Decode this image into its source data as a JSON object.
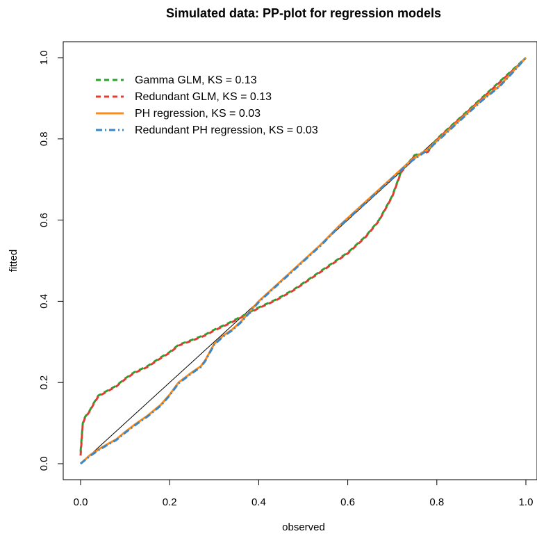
{
  "chart_data": {
    "type": "line",
    "title": "Simulated data: PP-plot for regression models",
    "xlabel": "observed",
    "ylabel": "fitted",
    "xlim": [
      0,
      1
    ],
    "ylim": [
      0,
      1
    ],
    "xticks": [
      "0.0",
      "0.2",
      "0.4",
      "0.6",
      "0.8",
      "1.0"
    ],
    "yticks": [
      "0.0",
      "0.2",
      "0.4",
      "0.6",
      "0.8",
      "1.0"
    ],
    "grid": false,
    "legend_position": "top-left",
    "reference_line": {
      "x": [
        0,
        1
      ],
      "y": [
        0,
        1
      ],
      "color": "#000000"
    },
    "series": [
      {
        "name": "Gamma GLM, KS = 0.13",
        "color": "#2ca02c",
        "dash": "dashed",
        "x": [
          0.0,
          0.005,
          0.01,
          0.02,
          0.03,
          0.04,
          0.06,
          0.08,
          0.1,
          0.12,
          0.15,
          0.18,
          0.2,
          0.22,
          0.25,
          0.28,
          0.3,
          0.33,
          0.36,
          0.4,
          0.44,
          0.48,
          0.52,
          0.56,
          0.6,
          0.64,
          0.67,
          0.7,
          0.72,
          0.75,
          0.78,
          0.8,
          0.83,
          0.86,
          0.89,
          0.92,
          0.95,
          0.98,
          1.0
        ],
        "y": [
          0.03,
          0.1,
          0.115,
          0.13,
          0.15,
          0.168,
          0.18,
          0.192,
          0.21,
          0.225,
          0.24,
          0.262,
          0.275,
          0.293,
          0.305,
          0.318,
          0.33,
          0.345,
          0.362,
          0.385,
          0.405,
          0.43,
          0.46,
          0.49,
          0.52,
          0.56,
          0.6,
          0.66,
          0.72,
          0.76,
          0.77,
          0.8,
          0.83,
          0.86,
          0.89,
          0.92,
          0.95,
          0.98,
          1.0
        ]
      },
      {
        "name": "Redundant GLM, KS = 0.13",
        "color": "#e03c31",
        "dash": "dashed",
        "x": [
          0.0,
          0.005,
          0.01,
          0.02,
          0.03,
          0.04,
          0.06,
          0.08,
          0.1,
          0.12,
          0.15,
          0.18,
          0.2,
          0.22,
          0.25,
          0.28,
          0.3,
          0.33,
          0.36,
          0.4,
          0.44,
          0.48,
          0.52,
          0.56,
          0.6,
          0.64,
          0.67,
          0.7,
          0.72,
          0.75,
          0.78,
          0.8,
          0.83,
          0.86,
          0.89,
          0.92,
          0.95,
          0.98,
          1.0
        ],
        "y": [
          0.02,
          0.098,
          0.113,
          0.128,
          0.148,
          0.166,
          0.178,
          0.19,
          0.208,
          0.223,
          0.238,
          0.26,
          0.273,
          0.291,
          0.303,
          0.316,
          0.328,
          0.343,
          0.36,
          0.383,
          0.403,
          0.428,
          0.458,
          0.488,
          0.518,
          0.558,
          0.598,
          0.658,
          0.718,
          0.758,
          0.768,
          0.798,
          0.828,
          0.858,
          0.888,
          0.918,
          0.948,
          0.978,
          1.0
        ]
      },
      {
        "name": "PH regression, KS = 0.03",
        "color": "#ff8c1a",
        "dash": "solid",
        "x": [
          0.0,
          0.02,
          0.04,
          0.06,
          0.08,
          0.1,
          0.12,
          0.15,
          0.18,
          0.2,
          0.22,
          0.25,
          0.27,
          0.28,
          0.3,
          0.32,
          0.34,
          0.36,
          0.38,
          0.4,
          0.43,
          0.46,
          0.5,
          0.54,
          0.58,
          0.62,
          0.66,
          0.7,
          0.74,
          0.78,
          0.82,
          0.86,
          0.9,
          0.94,
          0.97,
          1.0
        ],
        "y": [
          0.0,
          0.02,
          0.035,
          0.048,
          0.06,
          0.078,
          0.095,
          0.118,
          0.145,
          0.17,
          0.2,
          0.225,
          0.24,
          0.255,
          0.295,
          0.315,
          0.33,
          0.35,
          0.375,
          0.4,
          0.43,
          0.46,
          0.5,
          0.54,
          0.585,
          0.625,
          0.665,
          0.705,
          0.745,
          0.775,
          0.815,
          0.855,
          0.895,
          0.93,
          0.965,
          1.0
        ]
      },
      {
        "name": "Redundant PH regression, KS = 0.03",
        "color": "#3a86c8",
        "dash": "dashdot",
        "x": [
          0.0,
          0.02,
          0.04,
          0.06,
          0.08,
          0.1,
          0.12,
          0.15,
          0.18,
          0.2,
          0.22,
          0.25,
          0.27,
          0.28,
          0.3,
          0.32,
          0.34,
          0.36,
          0.38,
          0.4,
          0.43,
          0.46,
          0.5,
          0.54,
          0.58,
          0.62,
          0.66,
          0.7,
          0.74,
          0.78,
          0.82,
          0.86,
          0.9,
          0.94,
          0.97,
          1.0
        ],
        "y": [
          0.0,
          0.018,
          0.033,
          0.046,
          0.058,
          0.076,
          0.093,
          0.116,
          0.143,
          0.168,
          0.198,
          0.223,
          0.238,
          0.253,
          0.293,
          0.313,
          0.328,
          0.348,
          0.373,
          0.398,
          0.428,
          0.458,
          0.498,
          0.538,
          0.583,
          0.623,
          0.663,
          0.703,
          0.743,
          0.773,
          0.813,
          0.853,
          0.893,
          0.928,
          0.963,
          1.0
        ]
      }
    ]
  }
}
